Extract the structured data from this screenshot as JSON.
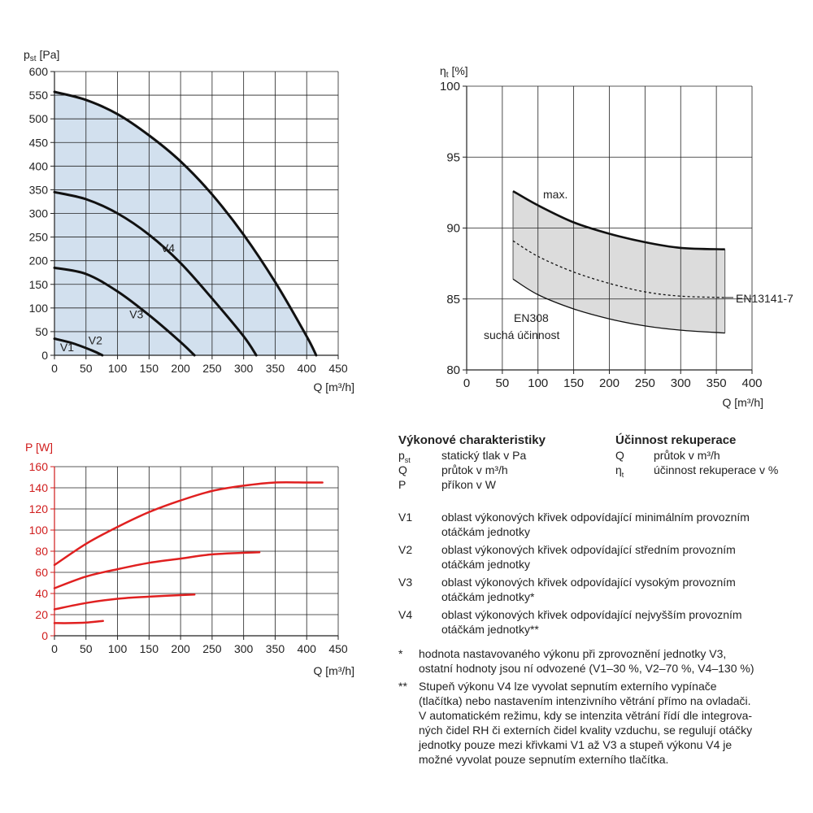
{
  "charts": {
    "pressure": {
      "y_title_main": "p",
      "y_title_sub": "st",
      "y_title_unit": " [Pa]",
      "x_title": "Q [m³/h]",
      "curve_labels": [
        "V1",
        "V2",
        "V3",
        "V4"
      ]
    },
    "efficiency": {
      "y_title_main": "η",
      "y_title_sub": "t",
      "y_title_unit": " [%]",
      "x_title": "Q [m³/h]",
      "label_max": "max.",
      "label_en13141": "EN13141-7",
      "label_en308_1": "EN308",
      "label_en308_2": "suchá účinnost"
    },
    "power": {
      "y_title": "P [W]",
      "x_title": "Q [m³/h]"
    }
  },
  "chart_data": [
    {
      "type": "area",
      "title": "",
      "xlabel": "Q [m³/h]",
      "ylabel": "p_st [Pa]",
      "xlim": [
        0,
        450
      ],
      "ylim": [
        0,
        600
      ],
      "xticks": [
        0,
        50,
        100,
        150,
        200,
        250,
        300,
        350,
        400,
        450
      ],
      "yticks": [
        0,
        50,
        100,
        150,
        200,
        250,
        300,
        350,
        400,
        450,
        500,
        550,
        600
      ],
      "grid": true,
      "series": [
        {
          "name": "V1",
          "x": [
            0,
            30,
            60,
            76
          ],
          "y": [
            35,
            25,
            10,
            0
          ]
        },
        {
          "name": "V2",
          "x": [
            0,
            50,
            100,
            150,
            200,
            222
          ],
          "y": [
            185,
            172,
            135,
            85,
            28,
            0
          ]
        },
        {
          "name": "V3",
          "x": [
            0,
            50,
            100,
            150,
            200,
            250,
            300,
            320
          ],
          "y": [
            345,
            330,
            300,
            255,
            195,
            120,
            40,
            0
          ]
        },
        {
          "name": "V4",
          "x": [
            0,
            50,
            100,
            150,
            200,
            250,
            300,
            350,
            400,
            415
          ],
          "y": [
            557,
            540,
            510,
            465,
            410,
            340,
            255,
            155,
            40,
            0
          ]
        }
      ]
    },
    {
      "type": "area",
      "title": "",
      "xlabel": "Q [m³/h]",
      "ylabel": "ηt [%]",
      "xlim": [
        0,
        400
      ],
      "ylim": [
        80,
        100
      ],
      "xticks": [
        0,
        50,
        100,
        150,
        200,
        250,
        300,
        350,
        400
      ],
      "yticks": [
        80,
        85,
        90,
        95,
        100
      ],
      "grid": true,
      "series": [
        {
          "name": "max.",
          "x": [
            65,
            100,
            150,
            200,
            250,
            300,
            362
          ],
          "y": [
            92.6,
            91.6,
            90.4,
            89.6,
            89.0,
            88.6,
            88.5
          ]
        },
        {
          "name": "EN13141-7",
          "x": [
            65,
            100,
            150,
            200,
            250,
            300,
            362
          ],
          "y": [
            89.1,
            88.0,
            86.9,
            86.1,
            85.5,
            85.2,
            85.1
          ]
        },
        {
          "name": "EN308 suchá účinnost",
          "x": [
            65,
            100,
            150,
            200,
            250,
            300,
            362
          ],
          "y": [
            86.4,
            85.3,
            84.3,
            83.6,
            83.1,
            82.8,
            82.6
          ]
        }
      ]
    },
    {
      "type": "line",
      "title": "",
      "xlabel": "Q [m³/h]",
      "ylabel": "P [W]",
      "xlim": [
        0,
        450
      ],
      "ylim": [
        0,
        160
      ],
      "xticks": [
        0,
        50,
        100,
        150,
        200,
        250,
        300,
        350,
        400,
        450
      ],
      "yticks": [
        0,
        20,
        40,
        60,
        80,
        100,
        120,
        140,
        160
      ],
      "grid": true,
      "series": [
        {
          "name": "V1",
          "x": [
            0,
            25,
            50,
            77
          ],
          "y": [
            12,
            12,
            12.5,
            14
          ]
        },
        {
          "name": "V2",
          "x": [
            0,
            50,
            100,
            150,
            222
          ],
          "y": [
            25,
            31,
            35,
            37,
            39
          ]
        },
        {
          "name": "V3",
          "x": [
            0,
            50,
            100,
            150,
            200,
            250,
            325
          ],
          "y": [
            45,
            56,
            63,
            69,
            73,
            77,
            79
          ]
        },
        {
          "name": "V4",
          "x": [
            0,
            50,
            100,
            150,
            200,
            250,
            300,
            350,
            400,
            425
          ],
          "y": [
            67,
            87,
            103,
            117,
            128,
            137,
            142,
            145,
            145,
            145
          ]
        }
      ]
    }
  ],
  "legend": {
    "left_header": "Výkonové charakteristiky",
    "left_rows": [
      {
        "sym_main": "p",
        "sym_sub": "st",
        "text": "statický tlak v Pa"
      },
      {
        "sym_main": "Q",
        "sym_sub": "",
        "text": "průtok v m³/h"
      },
      {
        "sym_main": "P",
        "sym_sub": "",
        "text": "příkon v W"
      }
    ],
    "right_header": "Účinnost rekuperace",
    "right_rows": [
      {
        "sym_main": "Q",
        "sym_sub": "",
        "text": "průtok v m³/h"
      },
      {
        "sym_main": "η",
        "sym_sub": "t",
        "text": "účinnost rekuperace v %"
      }
    ],
    "v_rows": [
      {
        "sym": "V1",
        "line1": "oblast výkonových křivek odpovídající minimálním provozním",
        "line2": "otáčkám jednotky"
      },
      {
        "sym": "V2",
        "line1": "oblast výkonových křivek odpovídající středním provozním",
        "line2": "otáčkám jednotky"
      },
      {
        "sym": "V3",
        "line1": "oblast výkonových křivek odpovídající vysokým provozním",
        "line2": "otáčkám jednotky*"
      },
      {
        "sym": "V4",
        "line1": "oblast výkonových křivek odpovídající nejvyšším provozním",
        "line2": "otáčkám jednotky**"
      }
    ],
    "note1_sym": "*",
    "note1_lines": [
      "hodnota nastavovaného výkonu při zprovoznění jednotky V3,",
      "ostatní hodnoty jsou ní odvozené (V1–30 %, V2–70 %, V4–130 %)"
    ],
    "note2_sym": "**",
    "note2_lines": [
      "Stupeň výkonu V4 lze vyvolat sepnutím externího vypínače",
      "(tlačítka) nebo nastavením intenzivního větrání přímo na ovladači.",
      "V automatickém režimu, kdy se intenzita větrání řídí dle integrova-",
      "ných čidel RH či externích čidel kvality vzduchu, se regulují otáčky",
      "jednotky pouze mezi křivkami V1 až V3 a stupeň výkonu V4 je",
      "možné vyvolat pouze sepnutím externího tlačítka."
    ]
  }
}
